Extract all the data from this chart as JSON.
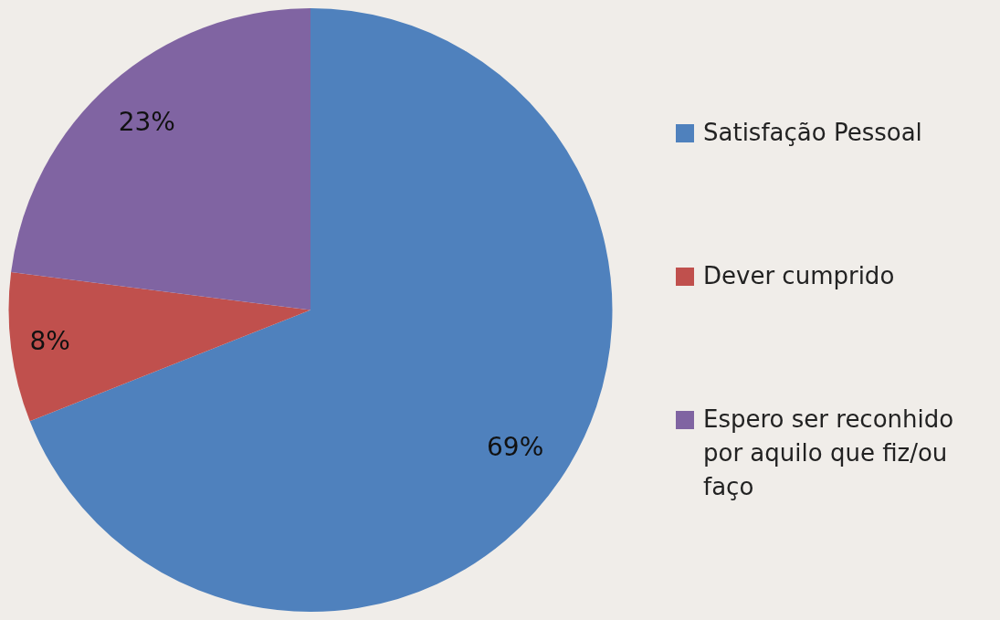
{
  "chart_data": {
    "type": "pie",
    "categories": [
      "Satisfação Pessoal",
      "Dever cumprido",
      "Espero ser reconhido por aquilo que fiz/ou faço"
    ],
    "values": [
      69,
      8,
      23
    ],
    "colors": [
      "#4f81bd",
      "#c0504d",
      "#8064a2"
    ],
    "value_labels": [
      "69%",
      "8%",
      "23%"
    ],
    "legend": "right"
  }
}
